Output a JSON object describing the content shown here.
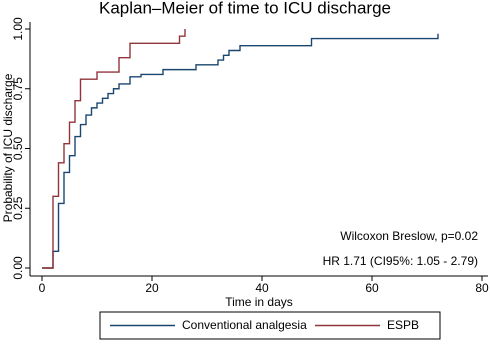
{
  "chart_data": {
    "type": "step",
    "title": "Kaplan–Meier of time to ICU discharge",
    "x_label": "Time in days",
    "y_label": "Probability of ICU discharge",
    "annotations": [
      "Wilcoxon Breslow, p=0.02",
      "HR 1.71 (CI95%: 1.05 - 2.79)"
    ],
    "xlim": [
      0,
      80
    ],
    "ylim": [
      0,
      1
    ],
    "xticks": [
      0,
      20,
      40,
      60,
      80
    ],
    "yticks": [
      {
        "value": 0,
        "label": "0.00"
      },
      {
        "value": 0.25,
        "label": "0.25"
      },
      {
        "value": 0.5,
        "label": "0.50"
      },
      {
        "value": 0.75,
        "label": "0.75"
      },
      {
        "value": 1,
        "label": "1.00"
      }
    ],
    "grid": false,
    "legend": "bottom",
    "series": [
      {
        "name": "Conventional analgesia",
        "color": "#1a476f",
        "x": [
          0,
          2,
          3,
          4,
          5,
          6,
          7,
          8,
          9,
          10,
          11,
          12,
          13,
          14,
          16,
          18,
          22,
          28,
          32,
          33,
          34,
          36,
          49,
          72
        ],
        "values": [
          0,
          0.07,
          0.27,
          0.4,
          0.47,
          0.55,
          0.6,
          0.64,
          0.67,
          0.69,
          0.71,
          0.73,
          0.75,
          0.77,
          0.8,
          0.81,
          0.83,
          0.85,
          0.87,
          0.89,
          0.91,
          0.93,
          0.96,
          0.98
        ]
      },
      {
        "name": "ESPB",
        "color": "#90353b",
        "x": [
          0,
          2,
          3,
          4,
          5,
          6,
          7,
          10,
          14,
          16,
          25,
          26
        ],
        "values": [
          0,
          0.3,
          0.44,
          0.52,
          0.61,
          0.7,
          0.79,
          0.82,
          0.88,
          0.94,
          0.97,
          1
        ]
      }
    ]
  }
}
